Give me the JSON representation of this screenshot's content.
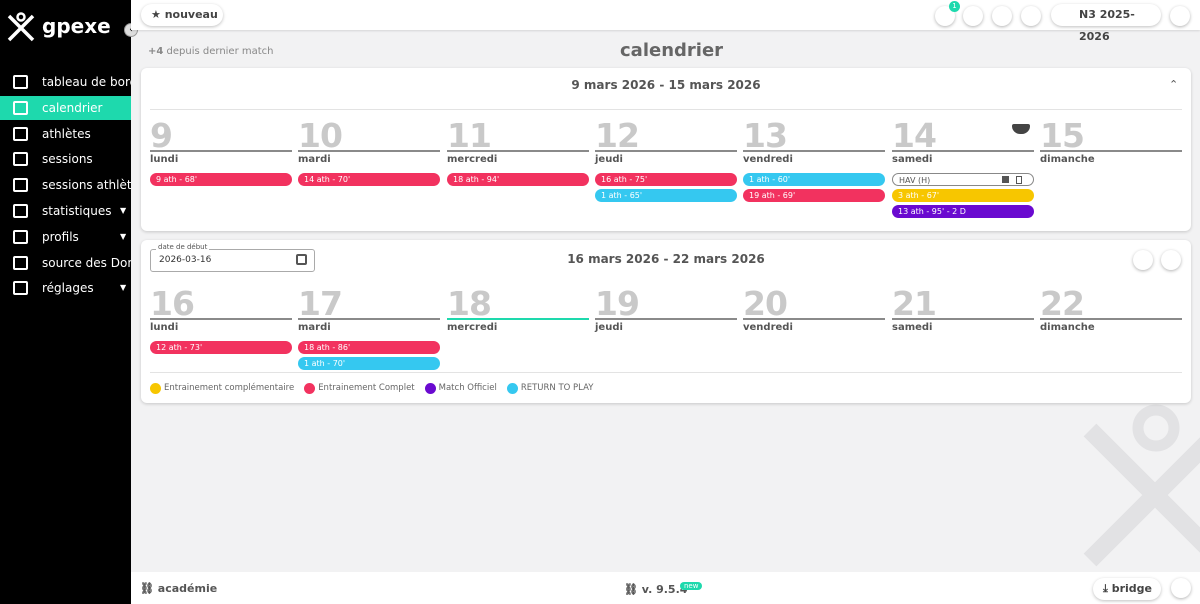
{
  "brand": "gpexe",
  "sidebar": [
    {
      "label": "tableau de bord"
    },
    {
      "label": "calendrier",
      "active": true
    },
    {
      "label": "athlètes"
    },
    {
      "label": "sessions"
    },
    {
      "label": "sessions athlètes"
    },
    {
      "label": "statistiques",
      "submenu": true
    },
    {
      "label": "profils",
      "submenu": true
    },
    {
      "label": "source des Données"
    },
    {
      "label": "réglages",
      "submenu": true
    }
  ],
  "topbar": {
    "new_button": "nouveau",
    "notification_count": "1",
    "season": "N3 2025-2026"
  },
  "page": {
    "since_prefix": "+4",
    "since_note": "depuis dernier match",
    "title": "calendrier"
  },
  "date_field": {
    "label": "date de début",
    "value": "2026-03-16"
  },
  "legend": [
    {
      "label": "Entrainement complémentaire",
      "color": "#f7c600"
    },
    {
      "label": "Entrainement Complet",
      "color": "#f2325f"
    },
    {
      "label": "Match Officiel",
      "color": "#6a0ad0"
    },
    {
      "label": "RETURN TO PLAY",
      "color": "#35c8f0"
    }
  ],
  "weeks": [
    {
      "range": "9 mars 2026 - 15 mars 2026",
      "days": [
        {
          "num": 9,
          "name": "lundi",
          "events": [
            {
              "label": "9 ath - 68'",
              "type": 1
            }
          ]
        },
        {
          "num": 10,
          "name": "mardi",
          "events": [
            {
              "label": "14 ath - 70'",
              "type": 1
            }
          ]
        },
        {
          "num": 11,
          "name": "mercredi",
          "events": [
            {
              "label": "18 ath - 94'",
              "type": 1
            }
          ]
        },
        {
          "num": 12,
          "name": "jeudi",
          "events": [
            {
              "label": "16 ath - 75'",
              "type": 1
            },
            {
              "label": "1 ath - 65'",
              "type": 3
            }
          ]
        },
        {
          "num": 13,
          "name": "vendredi",
          "events": [
            {
              "label": "1 ath - 60'",
              "type": 3
            },
            {
              "label": "19 ath - 69'",
              "type": 1
            }
          ]
        },
        {
          "num": 14,
          "name": "samedi",
          "match_icon": true,
          "events": [
            {
              "label": "HAV (H)",
              "outlined": true
            },
            {
              "label": "3 ath - 67'",
              "type": 0
            },
            {
              "label": "13 ath - 95' - 2 D",
              "type": 2
            }
          ]
        },
        {
          "num": 15,
          "name": "dimanche",
          "events": []
        }
      ]
    },
    {
      "range": "16 mars 2026 - 22 mars 2026",
      "days": [
        {
          "num": 16,
          "name": "lundi",
          "events": [
            {
              "label": "12 ath - 73'",
              "type": 1
            }
          ]
        },
        {
          "num": 17,
          "name": "mardi",
          "events": [
            {
              "label": "18 ath - 86'",
              "type": 1
            },
            {
              "label": "1 ath - 70'",
              "type": 3
            }
          ]
        },
        {
          "num": 18,
          "name": "mercredi",
          "today": true,
          "events": []
        },
        {
          "num": 19,
          "name": "jeudi",
          "events": []
        },
        {
          "num": 20,
          "name": "vendredi",
          "events": []
        },
        {
          "num": 21,
          "name": "samedi",
          "events": []
        },
        {
          "num": 22,
          "name": "dimanche",
          "events": []
        }
      ]
    }
  ],
  "footer": {
    "left": "académie",
    "version": "v. 9.5.4",
    "badge": "new",
    "right": "bridge"
  }
}
